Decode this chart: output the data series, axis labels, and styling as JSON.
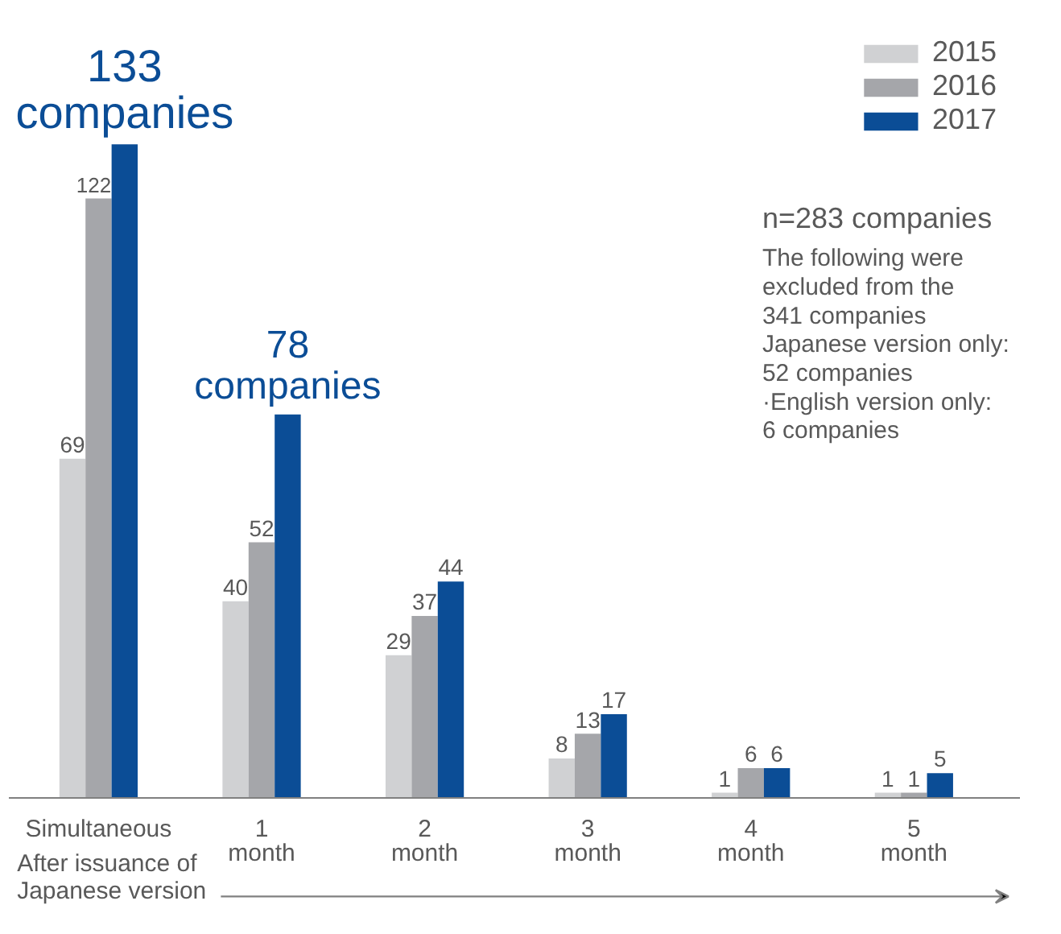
{
  "chart_data": {
    "type": "bar",
    "xlabel": "After issuance of Japanese version",
    "categories": [
      "Simultaneous",
      "1\nmonth",
      "2\nmonth",
      "3\nmonth",
      "4\nmonth",
      "5\nmonth"
    ],
    "series": [
      {
        "name": "2015",
        "color": "#d0d1d3",
        "values": [
          69,
          40,
          29,
          8,
          1,
          1
        ]
      },
      {
        "name": "2016",
        "color": "#a5a6aa",
        "values": [
          122,
          52,
          37,
          13,
          6,
          1
        ]
      },
      {
        "name": "2017",
        "color": "#0b4d96",
        "values": [
          133,
          78,
          44,
          17,
          6,
          5
        ],
        "value_labels": [
          "133 companies",
          "78 companies",
          "44",
          "17",
          "6",
          "5"
        ]
      }
    ],
    "data_labels": true,
    "legend": "top right",
    "grid": false,
    "tick_labels": "x",
    "annotations": [
      "n=283 companies",
      "The following were\nexcluded from the\n341 companies\nJapanese version only:\n52 companies\n·English version only:\n  6 companies"
    ]
  }
}
